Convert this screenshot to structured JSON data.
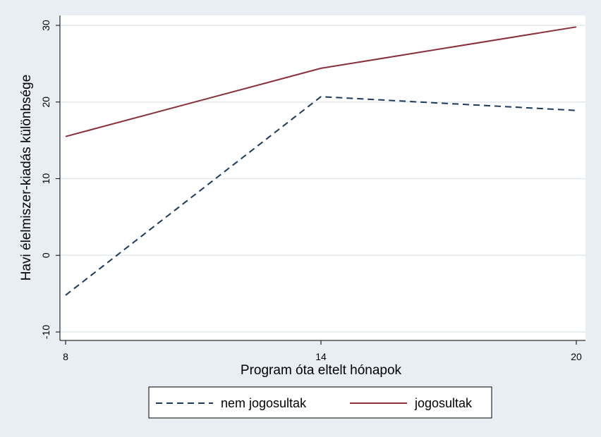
{
  "chart_data": {
    "type": "line",
    "title": "",
    "xlabel": "Program óta eltelt hónapok",
    "ylabel": "Havi élelmiszer-kiadás különbsége",
    "x": [
      8,
      14,
      20
    ],
    "xlim": [
      8,
      20
    ],
    "ylim": [
      -10,
      30
    ],
    "xticks": [
      8,
      14,
      20
    ],
    "yticks": [
      -10,
      0,
      10,
      20,
      30
    ],
    "ytick_labels": [
      "-10",
      "0",
      "10",
      "20",
      "30"
    ],
    "grid": "horizontal",
    "legend_position": "bottom",
    "series": [
      {
        "name": "nem jogosultak",
        "values": [
          -5.2,
          20.7,
          18.9
        ],
        "color": "#1a3a5c",
        "style": "dashed"
      },
      {
        "name": "jogosultak",
        "values": [
          15.5,
          24.4,
          29.8
        ],
        "color": "#8b2f3a",
        "style": "solid"
      }
    ],
    "colors": {
      "background": "#e8eef3",
      "plot_area": "#ffffff",
      "grid": "#e2e8ec"
    }
  }
}
